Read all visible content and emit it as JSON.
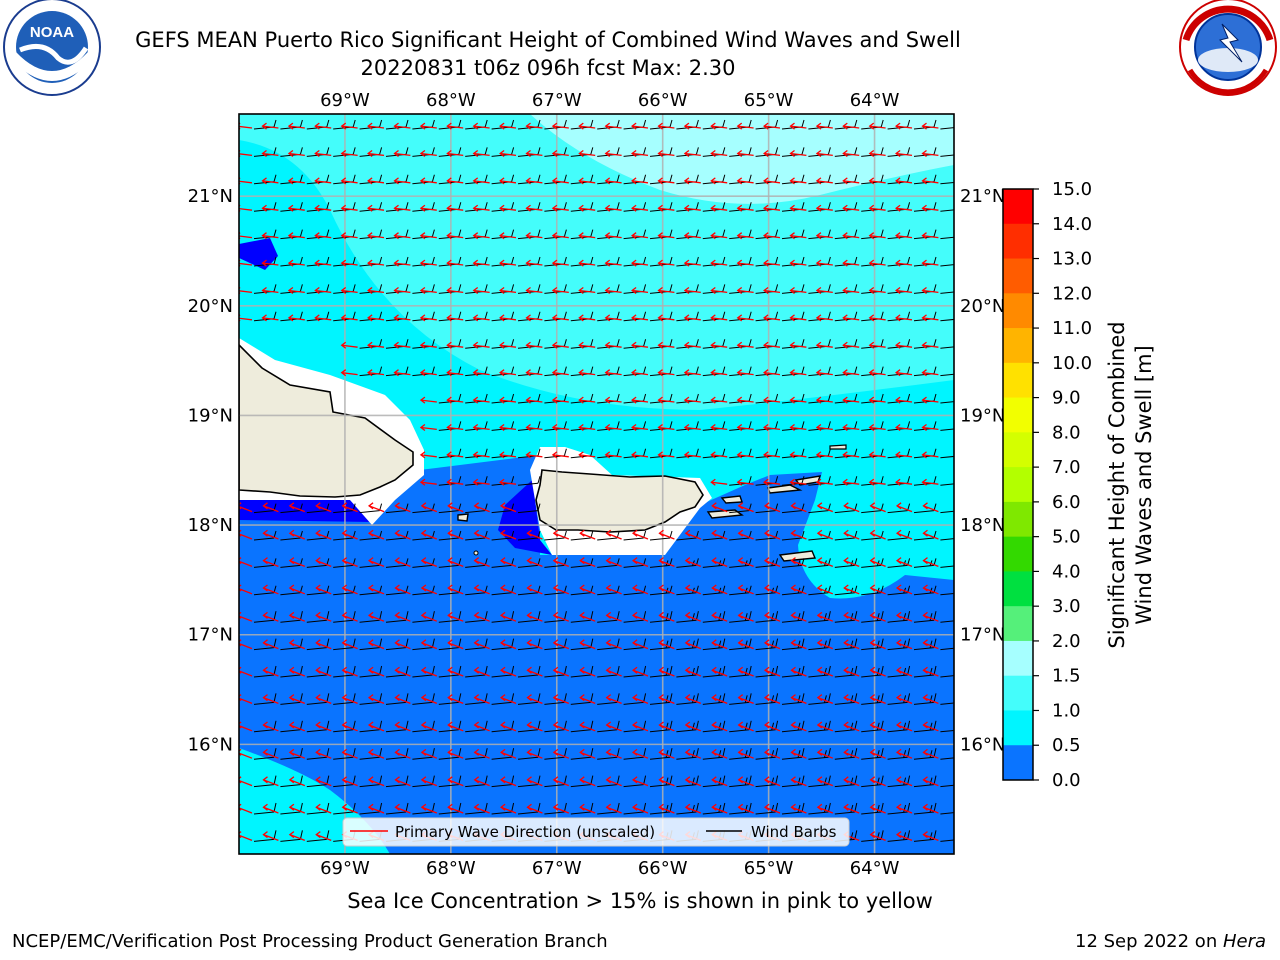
{
  "header": {
    "title_line1": "GEFS MEAN Puerto Rico Significant Height of Combined Wind Waves and Swell",
    "title_line2": "20220831 t06z 096h fcst   Max: 2.30",
    "left_logo": {
      "name": "noaa-logo",
      "text": "NOAA",
      "ring_text": "NATIONAL OCEANIC AND ATMOSPHERIC ADMINISTRATION · U.S. DEPARTMENT OF COMMERCE"
    },
    "right_logo": {
      "name": "nws-logo",
      "ring_text": "NATIONAL WEATHER SERVICE"
    }
  },
  "map": {
    "lon_labels": [
      "69°W",
      "68°W",
      "67°W",
      "66°W",
      "65°W",
      "64°W"
    ],
    "lat_labels": [
      "21°N",
      "20°N",
      "19°N",
      "18°N",
      "17°N",
      "16°N"
    ],
    "lon_range": [
      -70.0,
      -63.25
    ],
    "lat_range": [
      15.0,
      21.75
    ],
    "grid": true,
    "colors": {
      "land": "#eeecdc",
      "ocean_0_0.5": "#0000ff",
      "ocean_0.5_1.0": "#0a74ff",
      "ocean_1.0_1.5": "#00f5ff",
      "ocean_1.5_2.0": "#44fdfb",
      "ocean_2.0_3.0": "#a6ffff",
      "wave_arrow": "#ff0000",
      "wind_barb": "#000000"
    },
    "legend": {
      "placement": "bottom-center",
      "entries": [
        {
          "label": "Primary Wave Direction (unscaled)",
          "color": "#ff0000"
        },
        {
          "label": "Wind Barbs",
          "color": "#000000"
        }
      ]
    }
  },
  "colorbar": {
    "label_line1": "Significant Height of Combined",
    "label_line2": "Wind Waves and Swell [m]",
    "ticks": [
      "15.0",
      "14.0",
      "13.0",
      "12.0",
      "11.0",
      "10.0",
      "9.0",
      "8.0",
      "7.0",
      "6.0",
      "5.0",
      "4.0",
      "3.0",
      "2.0",
      "1.5",
      "1.0",
      "0.5",
      "0.0"
    ],
    "colors_top_to_bottom": [
      "#ff0000",
      "#ff2e00",
      "#ff5c00",
      "#ff8a00",
      "#ffb400",
      "#ffe100",
      "#f2ff00",
      "#d4ff00",
      "#b3ff00",
      "#7fe800",
      "#33d900",
      "#00e040",
      "#55f07a",
      "#a6ffff",
      "#44fdfb",
      "#00f5ff",
      "#0a74ff",
      "#0000ff"
    ]
  },
  "caption": "Sea Ice Concentration > 15% is shown in pink to yellow",
  "footer": {
    "left": "NCEP/EMC/Verification Post Processing Product Generation Branch",
    "right_prefix": "12 Sep 2022 on ",
    "right_italic": "Hera"
  }
}
